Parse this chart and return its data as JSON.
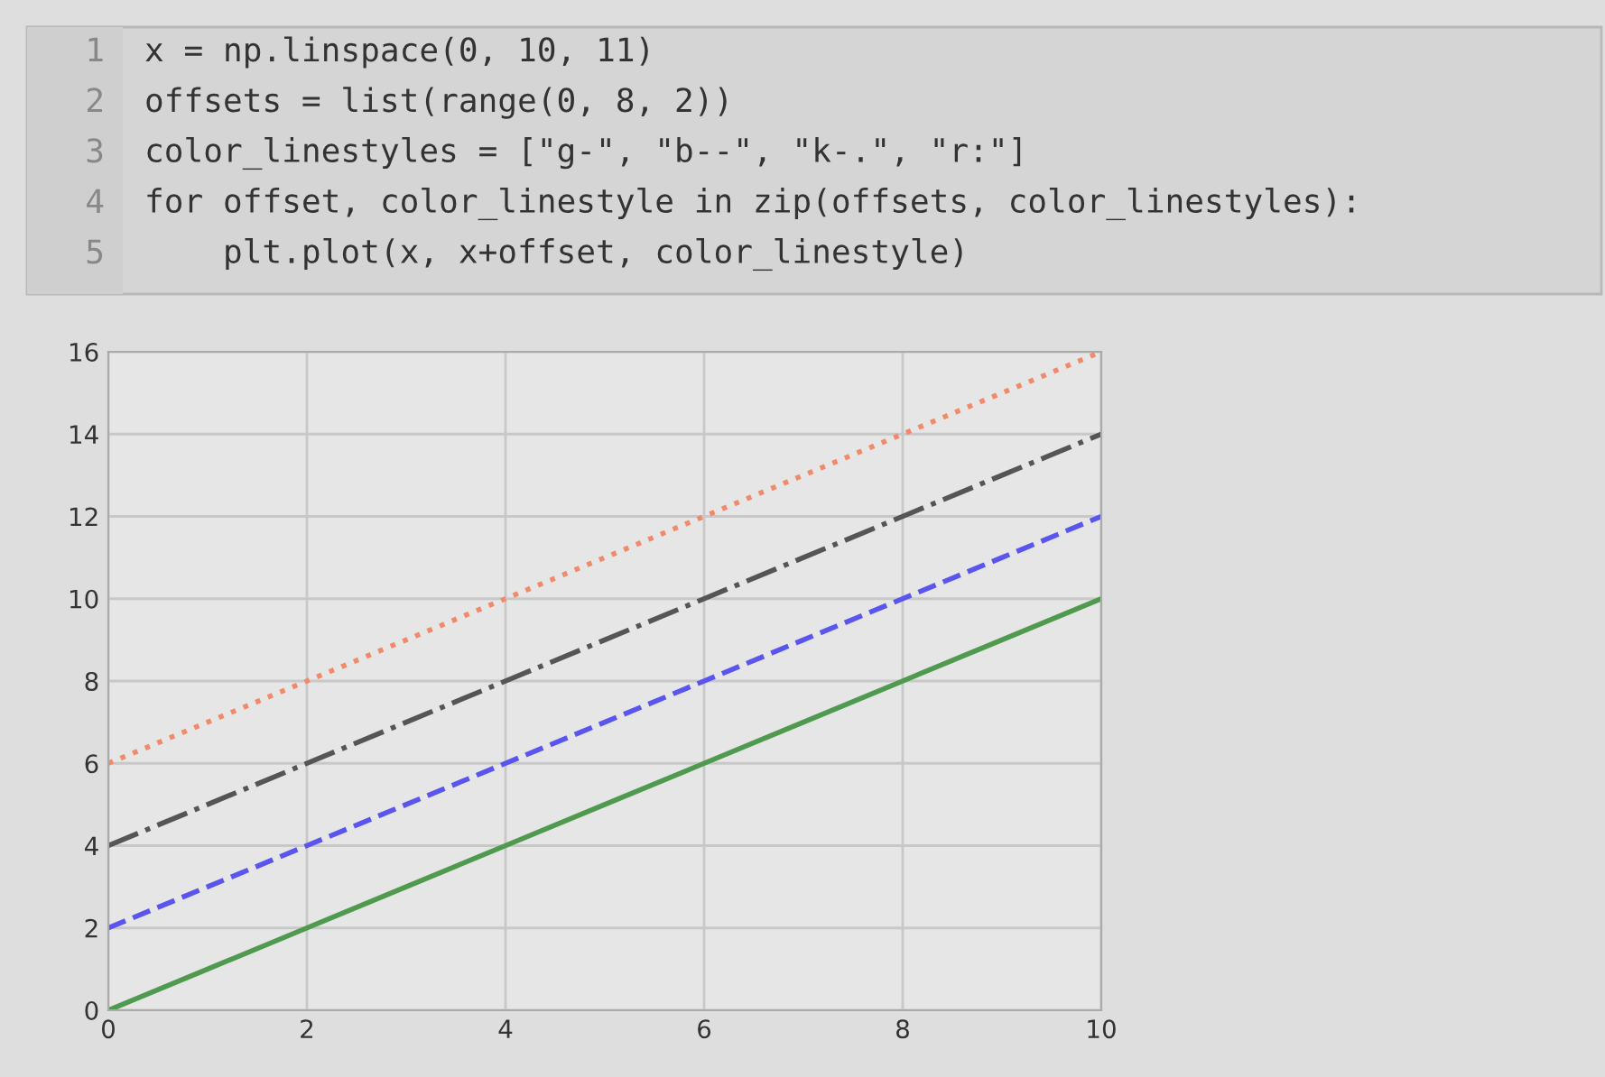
{
  "chart_data": {
    "type": "line",
    "x": [
      0,
      1,
      2,
      3,
      4,
      5,
      6,
      7,
      8,
      9,
      10
    ],
    "series": [
      {
        "color": "#4f9a4f",
        "line_style": "solid",
        "values": [
          0,
          1,
          2,
          3,
          4,
          5,
          6,
          7,
          8,
          9,
          10
        ]
      },
      {
        "color": "#5a55ee",
        "line_style": "dashed",
        "values": [
          2,
          3,
          4,
          5,
          6,
          7,
          8,
          9,
          10,
          11,
          12
        ]
      },
      {
        "color": "#555555",
        "line_style": "dashdot",
        "values": [
          4,
          5,
          6,
          7,
          8,
          9,
          10,
          11,
          12,
          13,
          14
        ]
      },
      {
        "color": "#f08a6a",
        "line_style": "dotted",
        "values": [
          6,
          7,
          8,
          9,
          10,
          11,
          12,
          13,
          14,
          15,
          16
        ]
      }
    ],
    "xlim": [
      0,
      10
    ],
    "ylim": [
      0,
      16
    ],
    "xticks": [
      0,
      2,
      4,
      6,
      8,
      10
    ],
    "yticks": [
      0,
      2,
      4,
      6,
      8,
      10,
      12,
      14,
      16
    ],
    "grid": true,
    "legend": false,
    "annotations": [
      "1\tx = np.linspace(0, 10, 11)",
      "2\toffsets = list(range(0, 8, 2))",
      "3\tcolor_linestyles = [\"g-\", \"b--\", \"k-.\", \"r:\"]",
      "4\tfor offset, color_linestyle in zip(offsets, color_linestyles):",
      "5\t    plt.plot(x, x+offset, color_linestyle)"
    ]
  }
}
